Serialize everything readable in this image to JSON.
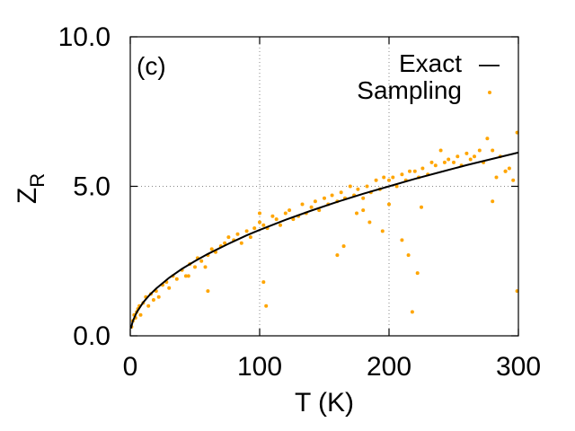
{
  "chart_data": {
    "type": "scatter",
    "panel_label": "(c)",
    "xlabel": "T (K)",
    "ylabel_main": "Z",
    "ylabel_sub": "R",
    "xlim": [
      0,
      300
    ],
    "ylim": [
      0,
      10
    ],
    "x_ticks": [
      {
        "value": 0,
        "label": "0"
      },
      {
        "value": 100,
        "label": "100"
      },
      {
        "value": 200,
        "label": "200"
      },
      {
        "value": 300,
        "label": "300"
      }
    ],
    "y_ticks": [
      {
        "value": 0,
        "label": "0.0"
      },
      {
        "value": 5,
        "label": "5.0"
      },
      {
        "value": 10,
        "label": "10.0"
      }
    ],
    "grid": true,
    "legend_position": "top-right",
    "series": [
      {
        "name": "Exact",
        "kind": "line",
        "color": "#000000",
        "x": [
          0.5,
          2,
          5,
          10,
          15,
          20,
          30,
          40,
          50,
          60,
          75,
          90,
          100,
          120,
          140,
          160,
          180,
          200,
          220,
          240,
          260,
          280,
          300
        ],
        "y": [
          0.25,
          0.5,
          0.79,
          1.12,
          1.37,
          1.58,
          1.94,
          2.24,
          2.5,
          2.74,
          3.06,
          3.36,
          3.54,
          3.88,
          4.19,
          4.48,
          4.75,
          5.0,
          5.25,
          5.48,
          5.71,
          5.92,
          6.13
        ]
      },
      {
        "name": "Sampling",
        "kind": "scatter",
        "color": "#FFA500",
        "x": [
          1,
          2,
          3,
          4,
          5,
          6,
          7,
          8,
          10,
          12,
          14,
          16,
          18,
          20,
          22,
          25,
          28,
          30,
          33,
          36,
          40,
          43,
          46,
          50,
          52,
          55,
          58,
          60,
          63,
          66,
          70,
          73,
          76,
          80,
          83,
          86,
          90,
          93,
          96,
          100,
          103,
          106,
          110,
          113,
          116,
          120,
          123,
          126,
          130,
          133,
          136,
          140,
          143,
          146,
          150,
          153,
          156,
          160,
          163,
          166,
          170,
          173,
          176,
          180,
          183,
          186,
          190,
          193,
          196,
          200,
          203,
          206,
          210,
          213,
          216,
          220,
          223,
          226,
          230,
          233,
          236,
          240,
          243,
          246,
          250,
          253,
          256,
          260,
          263,
          266,
          270,
          273,
          276,
          280,
          283,
          286,
          290,
          293,
          296,
          299,
          45,
          60,
          100,
          103,
          105,
          160,
          165,
          175,
          180,
          185,
          195,
          200,
          210,
          215,
          218,
          222,
          225,
          280,
          290,
          299
        ],
        "y": [
          0.3,
          0.5,
          0.7,
          0.6,
          0.8,
          0.9,
          1.0,
          0.7,
          1.1,
          1.3,
          1.0,
          1.4,
          1.2,
          1.5,
          1.3,
          1.7,
          1.8,
          1.6,
          2.0,
          1.9,
          2.2,
          2.0,
          2.4,
          2.3,
          2.6,
          2.5,
          2.3,
          2.7,
          2.9,
          2.8,
          3.0,
          3.1,
          3.3,
          3.2,
          3.4,
          3.1,
          3.5,
          3.3,
          3.6,
          3.8,
          3.7,
          3.6,
          4.0,
          3.9,
          3.7,
          4.1,
          4.2,
          3.9,
          4.0,
          4.4,
          4.1,
          4.3,
          4.5,
          4.2,
          4.6,
          4.4,
          4.7,
          4.5,
          4.8,
          4.6,
          5.0,
          4.7,
          4.9,
          4.6,
          5.0,
          4.8,
          5.2,
          4.9,
          5.3,
          5.2,
          5.3,
          5.0,
          5.4,
          5.2,
          5.5,
          5.5,
          5.3,
          5.6,
          5.4,
          5.8,
          5.7,
          6.2,
          5.8,
          5.9,
          5.8,
          6.0,
          5.7,
          6.1,
          5.9,
          6.0,
          6.2,
          5.8,
          6.6,
          6.2,
          5.3,
          6.0,
          5.5,
          5.6,
          5.2,
          6.8,
          2.0,
          1.5,
          4.1,
          1.8,
          1.0,
          2.7,
          3.0,
          4.1,
          4.2,
          3.8,
          3.5,
          4.4,
          3.2,
          2.7,
          0.8,
          2.1,
          4.3,
          4.5,
          5.5,
          1.5
        ]
      }
    ]
  }
}
